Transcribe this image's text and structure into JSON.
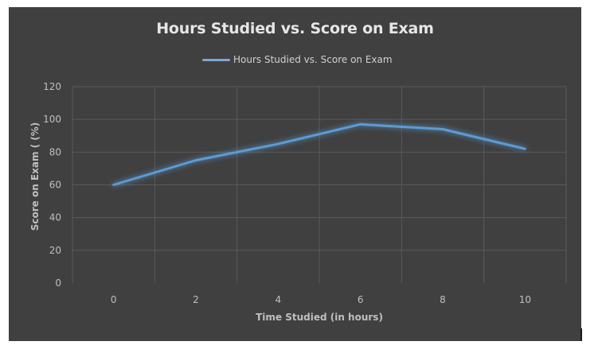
{
  "chart_data": {
    "type": "line",
    "title": "Hours Studied vs. Score on Exam",
    "xlabel": "Time Studied (in hours)",
    "ylabel": "Score on Exam ( (%)",
    "categories": [
      "0",
      "2",
      "4",
      "6",
      "8",
      "10"
    ],
    "x": [
      0,
      2,
      4,
      6,
      8,
      10
    ],
    "series": [
      {
        "name": "Hours Studied vs. Score on Exam",
        "values": [
          60,
          75,
          85,
          97,
          94,
          82
        ],
        "color": "#5b9bd5"
      }
    ],
    "ylim": [
      0,
      120
    ],
    "yticks": [
      0,
      20,
      40,
      60,
      80,
      100,
      120
    ],
    "grid": true,
    "legend_position": "top"
  },
  "colors": {
    "background": "#404040",
    "gridline": "#5a5a5a",
    "text": "#bfbfbf",
    "title": "#e6e6e6",
    "line": "#5b9bd5",
    "legend_line": "#7fa6d2"
  },
  "legend": {
    "label": "Hours Studied vs. Score on Exam"
  }
}
